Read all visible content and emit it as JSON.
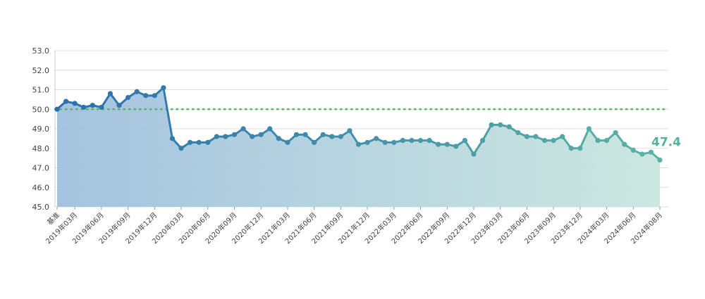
{
  "chart_data": {
    "type": "area",
    "title": "",
    "xlabel": "",
    "ylabel": "",
    "ylim": [
      45.0,
      53.0
    ],
    "yticks": [
      "45.0",
      "46.0",
      "47.0",
      "48.0",
      "49.0",
      "50.0",
      "51.0",
      "52.0",
      "53.0"
    ],
    "x_tick_labels": [
      "基准",
      "2019年03月",
      "2019年06月",
      "2019年09月",
      "2019年12月",
      "2020年03月",
      "2020年06月",
      "2020年09月",
      "2020年12月",
      "2021年03月",
      "2021年06月",
      "2021年09月",
      "2021年12月",
      "2022年03月",
      "2022年06月",
      "2022年09月",
      "2022年12月",
      "2023年03月",
      "2023年06月",
      "2023年09月",
      "2023年12月",
      "2024年03月",
      "2024年06月",
      "2024年08月"
    ],
    "reference_line": 50.0,
    "end_label": "47.4",
    "grid": "horizontal",
    "legend": "none",
    "values": [
      50.0,
      50.4,
      50.3,
      50.1,
      50.2,
      50.1,
      50.8,
      50.2,
      50.6,
      50.9,
      50.7,
      50.7,
      51.1,
      48.5,
      48.0,
      48.3,
      48.3,
      48.3,
      48.6,
      48.6,
      48.7,
      49.0,
      48.6,
      48.7,
      49.0,
      48.5,
      48.3,
      48.7,
      48.7,
      48.3,
      48.7,
      48.6,
      48.6,
      48.9,
      48.2,
      48.3,
      48.5,
      48.3,
      48.3,
      48.4,
      48.4,
      48.4,
      48.4,
      48.2,
      48.2,
      48.1,
      48.4,
      47.7,
      48.4,
      49.2,
      49.2,
      49.1,
      48.8,
      48.6,
      48.6,
      48.4,
      48.4,
      48.6,
      48.0,
      48.0,
      49.0,
      48.4,
      48.4,
      48.8,
      48.2,
      47.9,
      47.7,
      47.8,
      47.4
    ],
    "colors": {
      "line_start": "#2b6fad",
      "line_end": "#5bb3a4",
      "fill_start": "#9fc0dd",
      "fill_end": "#c9e6df",
      "reference_line": "#55b36c",
      "end_label": "#55b39c",
      "grid": "#dddddd"
    }
  }
}
